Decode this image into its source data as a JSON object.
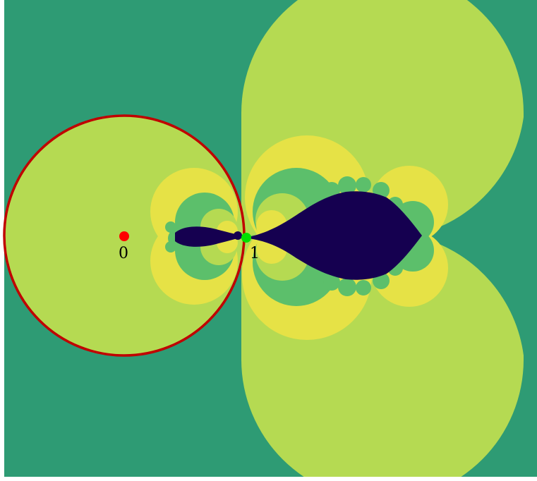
{
  "colors": {
    "background_basin": "#2e9b74",
    "light_green_basin": "#b5da52",
    "yellow_basin": "#e6e246",
    "mid_green_basin": "#5cbf6b",
    "dark_set": "#150050",
    "unit_circle": "#c00000",
    "origin_point": "#ff0000",
    "one_point": "#00e000"
  },
  "points": {
    "origin": {
      "label": "0"
    },
    "one": {
      "label": "1"
    }
  }
}
